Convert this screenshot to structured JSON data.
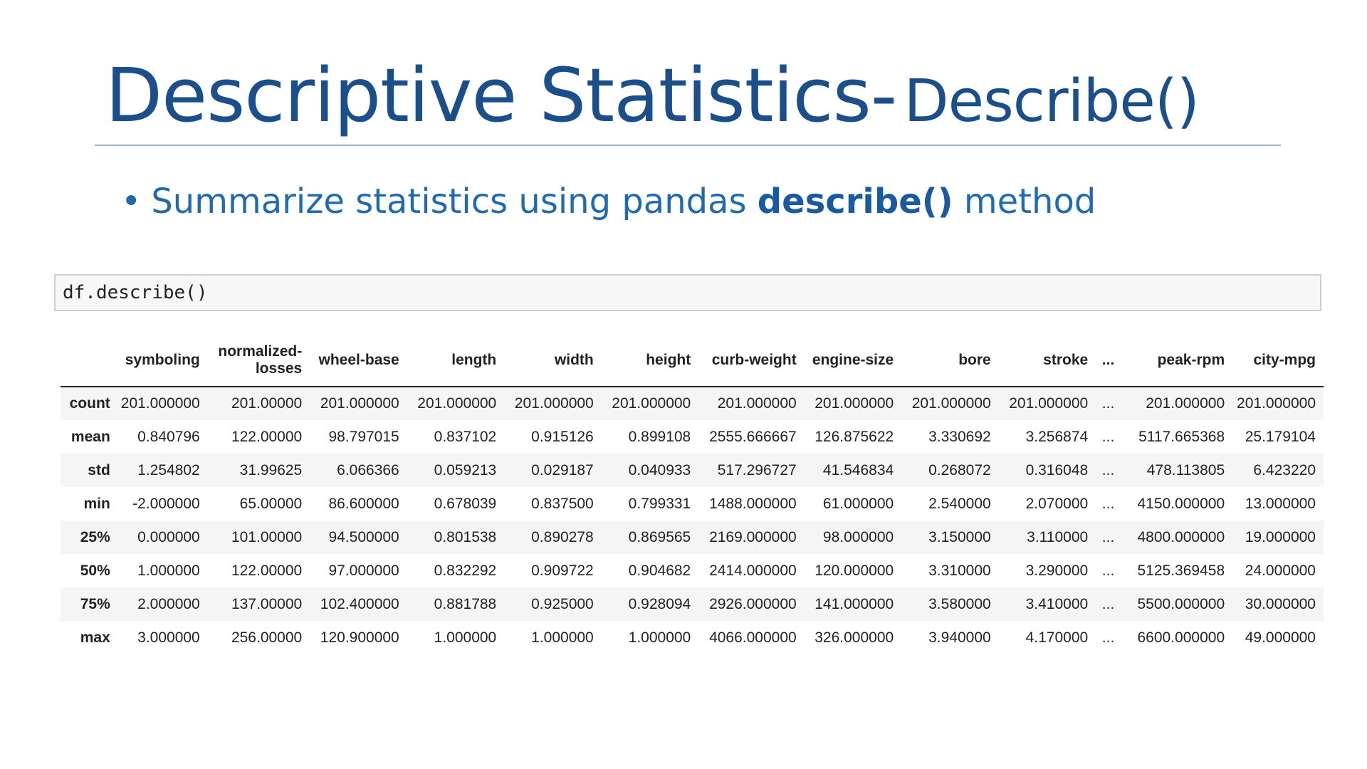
{
  "title": {
    "main": "Descriptive Statistics-",
    "sub": "Describe()"
  },
  "bullet": {
    "prefix": "Summarize statistics using pandas",
    "emphasis": "describe()",
    "suffix": "method"
  },
  "code": {
    "text": "df.describe()"
  },
  "table": {
    "columns": [
      "symboling",
      "normalized-losses",
      "wheel-base",
      "length",
      "width",
      "height",
      "curb-weight",
      "engine-size",
      "bore",
      "stroke",
      "...",
      "peak-rpm",
      "city-mpg"
    ],
    "rows": [
      {
        "label": "count",
        "values": [
          "201.000000",
          "201.00000",
          "201.000000",
          "201.000000",
          "201.000000",
          "201.000000",
          "201.000000",
          "201.000000",
          "201.000000",
          "201.000000",
          "...",
          "201.000000",
          "201.000000"
        ]
      },
      {
        "label": "mean",
        "values": [
          "0.840796",
          "122.00000",
          "98.797015",
          "0.837102",
          "0.915126",
          "0.899108",
          "2555.666667",
          "126.875622",
          "3.330692",
          "3.256874",
          "...",
          "5117.665368",
          "25.179104"
        ]
      },
      {
        "label": "std",
        "values": [
          "1.254802",
          "31.99625",
          "6.066366",
          "0.059213",
          "0.029187",
          "0.040933",
          "517.296727",
          "41.546834",
          "0.268072",
          "0.316048",
          "...",
          "478.113805",
          "6.423220"
        ]
      },
      {
        "label": "min",
        "values": [
          "-2.000000",
          "65.00000",
          "86.600000",
          "0.678039",
          "0.837500",
          "0.799331",
          "1488.000000",
          "61.000000",
          "2.540000",
          "2.070000",
          "...",
          "4150.000000",
          "13.000000"
        ]
      },
      {
        "label": "25%",
        "values": [
          "0.000000",
          "101.00000",
          "94.500000",
          "0.801538",
          "0.890278",
          "0.869565",
          "2169.000000",
          "98.000000",
          "3.150000",
          "3.110000",
          "...",
          "4800.000000",
          "19.000000"
        ]
      },
      {
        "label": "50%",
        "values": [
          "1.000000",
          "122.00000",
          "97.000000",
          "0.832292",
          "0.909722",
          "0.904682",
          "2414.000000",
          "120.000000",
          "3.310000",
          "3.290000",
          "...",
          "5125.369458",
          "24.000000"
        ]
      },
      {
        "label": "75%",
        "values": [
          "2.000000",
          "137.00000",
          "102.400000",
          "0.881788",
          "0.925000",
          "0.928094",
          "2926.000000",
          "141.000000",
          "3.580000",
          "3.410000",
          "...",
          "5500.000000",
          "30.000000"
        ]
      },
      {
        "label": "max",
        "values": [
          "3.000000",
          "256.00000",
          "120.900000",
          "1.000000",
          "1.000000",
          "1.000000",
          "4066.000000",
          "326.000000",
          "3.940000",
          "4.170000",
          "...",
          "6600.000000",
          "49.000000"
        ]
      }
    ]
  },
  "colors": {
    "title": "#1b4f8c",
    "bullet": "#1f6ab0",
    "rule": "#9db3d6",
    "stripe": "#f5f5f5"
  }
}
